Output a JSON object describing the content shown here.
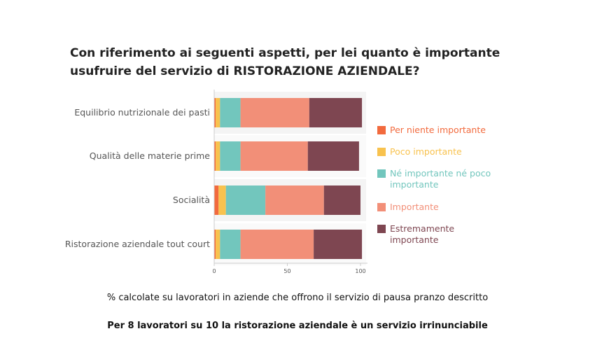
{
  "title": "Con riferimento ai seguenti aspetti, per lei quanto è importante usufruire del servizio di RISTORAZIONE AZIENDALE?",
  "footnote": "% calcolate su lavoratori in aziende che offrono il servizio di pausa pranzo descritto",
  "highlight": "Per 8 lavoratori su 10 la ristorazione aziendale è un servizio irrinunciabile",
  "chart_data": {
    "type": "bar",
    "orientation": "horizontal",
    "stacked": true,
    "categories": [
      "Equilibrio nutrizionale dei pasti",
      "Qualità delle materie prime",
      "Socialità",
      "Ristorazione aziendale tout court"
    ],
    "series": [
      {
        "name": "Per niente importante",
        "color": "#F26A3D",
        "values": [
          1,
          1,
          3,
          1
        ]
      },
      {
        "name": "Poco importante",
        "color": "#F8C24E",
        "values": [
          3,
          3,
          5,
          3
        ]
      },
      {
        "name": "Né importante né poco importante",
        "color": "#72C6BD",
        "values": [
          14,
          14,
          27,
          14
        ]
      },
      {
        "name": "Importante",
        "color": "#F28F78",
        "values": [
          47,
          46,
          40,
          50
        ]
      },
      {
        "name": "Estremamente importante",
        "color": "#7E4651",
        "values": [
          36,
          35,
          25,
          33
        ]
      }
    ],
    "xlim": [
      0,
      100
    ],
    "xticks": [
      "0",
      "50",
      "100"
    ],
    "legend_position": "right",
    "grid": false
  }
}
